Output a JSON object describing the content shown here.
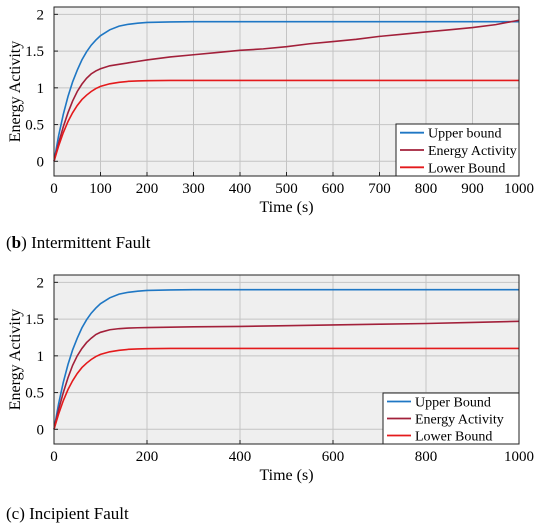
{
  "chart_data": [
    {
      "type": "line",
      "xlabel": "Time (s)",
      "ylabel": "Energy Activity",
      "xlim": [
        0,
        1000
      ],
      "ylim": [
        -0.2,
        2.1
      ],
      "xticks": [
        0,
        100,
        200,
        300,
        400,
        500,
        600,
        700,
        800,
        900,
        1000
      ],
      "yticks": [
        0,
        0.5,
        1,
        1.5,
        2
      ],
      "xtick_labels": [
        "0",
        "100",
        "200",
        "300",
        "400",
        "500",
        "600",
        "700",
        "800",
        "900",
        "1000"
      ],
      "ytick_labels": [
        "0",
        "0.5",
        "1",
        "1.5",
        "2"
      ],
      "grid": true,
      "legend_position": "bottom-right",
      "series": [
        {
          "name": "Upper bound",
          "color": "#1f77c4",
          "x": [
            0,
            10,
            20,
            30,
            40,
            50,
            60,
            70,
            80,
            90,
            100,
            120,
            140,
            160,
            180,
            200,
            250,
            300,
            400,
            500,
            600,
            700,
            800,
            900,
            1000
          ],
          "y": [
            0,
            0.35,
            0.64,
            0.88,
            1.08,
            1.24,
            1.38,
            1.49,
            1.58,
            1.65,
            1.71,
            1.79,
            1.84,
            1.865,
            1.88,
            1.89,
            1.897,
            1.9,
            1.9,
            1.9,
            1.9,
            1.9,
            1.9,
            1.9,
            1.9
          ]
        },
        {
          "name": "Energy Activity",
          "color": "#a2203a",
          "x": [
            0,
            10,
            20,
            30,
            40,
            50,
            60,
            70,
            80,
            90,
            100,
            120,
            140,
            160,
            180,
            200,
            250,
            300,
            350,
            400,
            450,
            500,
            550,
            600,
            650,
            700,
            750,
            800,
            850,
            900,
            950,
            1000
          ],
          "y": [
            0,
            0.25,
            0.47,
            0.66,
            0.82,
            0.95,
            1.05,
            1.13,
            1.19,
            1.23,
            1.26,
            1.3,
            1.32,
            1.34,
            1.36,
            1.38,
            1.42,
            1.45,
            1.48,
            1.51,
            1.53,
            1.56,
            1.6,
            1.63,
            1.66,
            1.7,
            1.73,
            1.76,
            1.79,
            1.82,
            1.86,
            1.92
          ]
        },
        {
          "name": "Lower Bound",
          "color": "#e41a1c",
          "x": [
            0,
            10,
            20,
            30,
            40,
            50,
            60,
            70,
            80,
            90,
            100,
            120,
            140,
            160,
            180,
            200,
            250,
            300,
            400,
            500,
            600,
            700,
            800,
            900,
            1000
          ],
          "y": [
            0,
            0.21,
            0.39,
            0.54,
            0.66,
            0.76,
            0.84,
            0.9,
            0.95,
            0.99,
            1.02,
            1.055,
            1.075,
            1.088,
            1.094,
            1.097,
            1.1,
            1.1,
            1.1,
            1.1,
            1.1,
            1.1,
            1.1,
            1.1,
            1.1
          ]
        }
      ]
    },
    {
      "type": "line",
      "xlabel": "Time (s)",
      "ylabel": "Energy Activity",
      "xlim": [
        0,
        1000
      ],
      "ylim": [
        -0.2,
        2.1
      ],
      "xticks": [
        0,
        200,
        400,
        600,
        800,
        1000
      ],
      "yticks": [
        0,
        0.5,
        1,
        1.5,
        2
      ],
      "xtick_labels": [
        "0",
        "200",
        "400",
        "600",
        "800",
        "1000"
      ],
      "ytick_labels": [
        "0",
        "0.5",
        "1",
        "1.5",
        "2"
      ],
      "grid": true,
      "legend_position": "bottom-right",
      "series": [
        {
          "name": "Upper Bound",
          "color": "#1f77c4",
          "x": [
            0,
            10,
            20,
            30,
            40,
            50,
            60,
            70,
            80,
            90,
            100,
            120,
            140,
            160,
            180,
            200,
            250,
            300,
            400,
            500,
            600,
            700,
            800,
            900,
            1000
          ],
          "y": [
            0,
            0.35,
            0.64,
            0.88,
            1.08,
            1.24,
            1.38,
            1.49,
            1.58,
            1.65,
            1.71,
            1.79,
            1.84,
            1.865,
            1.88,
            1.89,
            1.897,
            1.9,
            1.9,
            1.9,
            1.9,
            1.9,
            1.9,
            1.9,
            1.9
          ]
        },
        {
          "name": "Energy Activity",
          "color": "#a2203a",
          "x": [
            0,
            10,
            20,
            30,
            40,
            50,
            60,
            70,
            80,
            90,
            100,
            120,
            140,
            160,
            180,
            200,
            250,
            300,
            400,
            500,
            600,
            700,
            800,
            900,
            1000
          ],
          "y": [
            0,
            0.27,
            0.5,
            0.7,
            0.87,
            1.0,
            1.1,
            1.18,
            1.24,
            1.29,
            1.32,
            1.355,
            1.37,
            1.378,
            1.382,
            1.385,
            1.39,
            1.395,
            1.4,
            1.41,
            1.42,
            1.43,
            1.44,
            1.455,
            1.47
          ]
        },
        {
          "name": "Lower Bound",
          "color": "#e41a1c",
          "x": [
            0,
            10,
            20,
            30,
            40,
            50,
            60,
            70,
            80,
            90,
            100,
            120,
            140,
            160,
            180,
            200,
            250,
            300,
            400,
            500,
            600,
            700,
            800,
            900,
            1000
          ],
          "y": [
            0,
            0.21,
            0.39,
            0.54,
            0.66,
            0.76,
            0.84,
            0.9,
            0.95,
            0.99,
            1.02,
            1.055,
            1.075,
            1.088,
            1.094,
            1.097,
            1.1,
            1.1,
            1.1,
            1.1,
            1.1,
            1.1,
            1.1,
            1.1,
            1.1
          ]
        }
      ]
    }
  ],
  "captions": [
    {
      "label": "b",
      "text": " Intermittent Fault"
    },
    {
      "label": "c",
      "text": " Incipient Fault"
    }
  ]
}
